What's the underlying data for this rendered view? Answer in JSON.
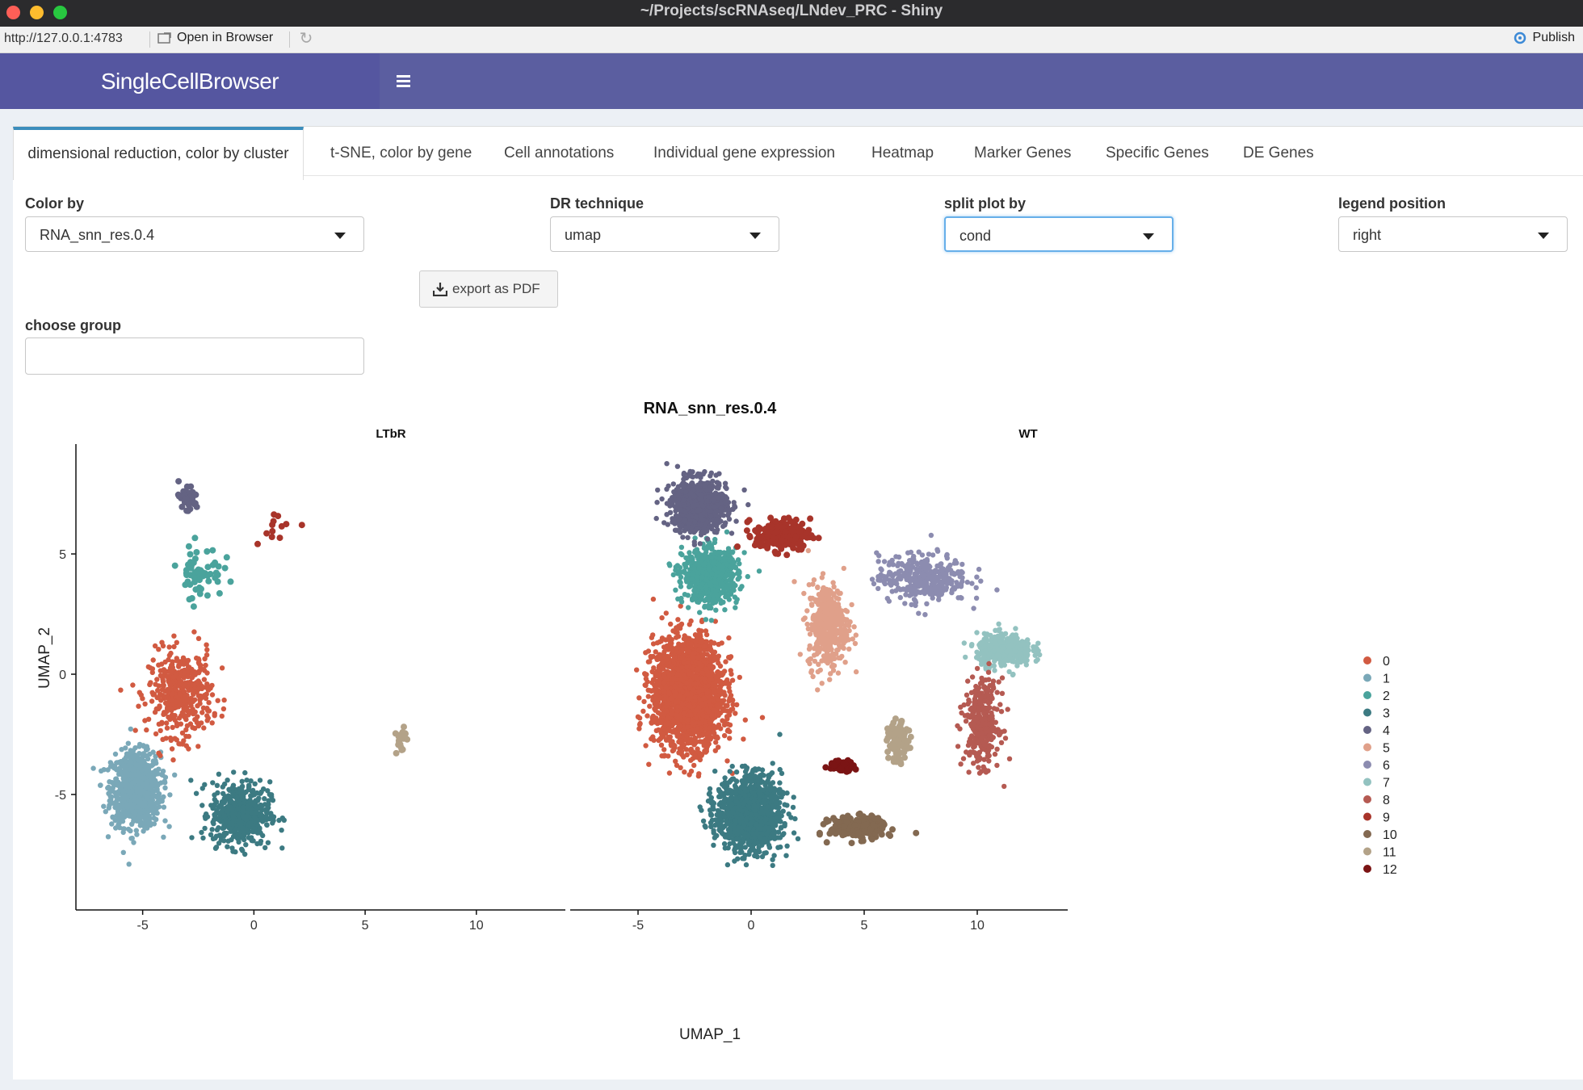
{
  "window": {
    "title": "~/Projects/scRNAseq/LNdev_PRC - Shiny",
    "url": "http://127.0.0.1:4783",
    "open_in_browser": "Open in Browser",
    "publish": "Publish"
  },
  "app": {
    "brand": "SingleCellBrowser",
    "tabs": [
      "dimensional reduction, color by cluster",
      "t-SNE, color by gene",
      "Cell annotations",
      "Individual gene expression",
      "Heatmap",
      "Marker Genes",
      "Specific Genes",
      "DE Genes"
    ],
    "active_tab": 0
  },
  "controls": {
    "color_by": {
      "label": "Color by",
      "value": "RNA_snn_res.0.4"
    },
    "dr_technique": {
      "label": "DR technique",
      "value": "umap"
    },
    "split_plot_by": {
      "label": "split plot by",
      "value": "cond"
    },
    "legend_position": {
      "label": "legend position",
      "value": "right"
    },
    "export_button": "export as PDF",
    "choose_group": {
      "label": "choose group",
      "value": ""
    }
  },
  "colors": {
    "accent": "#3c8dbc",
    "navbar": "#5b5ea0",
    "cluster_palette": [
      "#d15a41",
      "#7aa8b8",
      "#4aa39c",
      "#3c7a82",
      "#646383",
      "#e0a08a",
      "#8c8cb0",
      "#93c2c0",
      "#b55a52",
      "#a8342a",
      "#836951",
      "#b3a288",
      "#7b1414"
    ]
  },
  "chart_data": {
    "type": "scatter",
    "title": "RNA_snn_res.0.4",
    "xlabel": "UMAP_1",
    "ylabel": "UMAP_2",
    "panels": [
      "LTbR",
      "WT"
    ],
    "xlim": [
      -8,
      14
    ],
    "ylim": [
      -9.8,
      9.5
    ],
    "x_ticks": [
      -5,
      0,
      5,
      10
    ],
    "y_ticks": [
      5,
      0,
      -5
    ],
    "legend": {
      "position": "right",
      "entries": [
        "0",
        "1",
        "2",
        "3",
        "4",
        "5",
        "6",
        "7",
        "8",
        "9",
        "10",
        "11",
        "12"
      ]
    },
    "cluster_regions": [
      {
        "panel": "LTbR",
        "cluster": "1",
        "center": [
          -5.3,
          -4.8
        ],
        "spread": [
          1.0,
          1.4
        ],
        "n": 900
      },
      {
        "panel": "LTbR",
        "cluster": "0",
        "center": [
          -3.3,
          -0.8
        ],
        "spread": [
          1.3,
          1.6
        ],
        "n": 420
      },
      {
        "panel": "LTbR",
        "cluster": "3",
        "center": [
          -0.6,
          -5.8
        ],
        "spread": [
          1.2,
          1.2
        ],
        "n": 520
      },
      {
        "panel": "LTbR",
        "cluster": "2",
        "center": [
          -2.4,
          4.3
        ],
        "spread": [
          0.9,
          1.0
        ],
        "n": 60
      },
      {
        "panel": "LTbR",
        "cluster": "4",
        "center": [
          -3.0,
          7.3
        ],
        "spread": [
          0.5,
          0.6
        ],
        "n": 35
      },
      {
        "panel": "LTbR",
        "cluster": "9",
        "center": [
          1.0,
          6.2
        ],
        "spread": [
          1.0,
          0.6
        ],
        "n": 12
      },
      {
        "panel": "LTbR",
        "cluster": "11",
        "center": [
          6.6,
          -2.7
        ],
        "spread": [
          0.2,
          0.6
        ],
        "n": 25
      },
      {
        "panel": "WT",
        "cluster": "0",
        "center": [
          -2.8,
          -0.8
        ],
        "spread": [
          1.4,
          2.0
        ],
        "n": 2200
      },
      {
        "panel": "WT",
        "cluster": "2",
        "center": [
          -1.8,
          4.1
        ],
        "spread": [
          1.1,
          1.0
        ],
        "n": 700
      },
      {
        "panel": "WT",
        "cluster": "4",
        "center": [
          -2.3,
          7.0
        ],
        "spread": [
          1.1,
          1.0
        ],
        "n": 800
      },
      {
        "panel": "WT",
        "cluster": "3",
        "center": [
          -0.1,
          -5.8
        ],
        "spread": [
          1.3,
          1.4
        ],
        "n": 1100
      },
      {
        "panel": "WT",
        "cluster": "9",
        "center": [
          1.4,
          5.8
        ],
        "spread": [
          1.1,
          0.6
        ],
        "n": 220
      },
      {
        "panel": "WT",
        "cluster": "5",
        "center": [
          3.4,
          2.0
        ],
        "spread": [
          0.8,
          1.6
        ],
        "n": 400
      },
      {
        "panel": "WT",
        "cluster": "6",
        "center": [
          7.6,
          4.0
        ],
        "spread": [
          1.8,
          0.9
        ],
        "n": 350
      },
      {
        "panel": "WT",
        "cluster": "7",
        "center": [
          11.2,
          1.0
        ],
        "spread": [
          1.1,
          0.6
        ],
        "n": 420
      },
      {
        "panel": "WT",
        "cluster": "8",
        "center": [
          10.2,
          -2.0
        ],
        "spread": [
          0.7,
          1.6
        ],
        "n": 330
      },
      {
        "panel": "WT",
        "cluster": "10",
        "center": [
          4.7,
          -6.4
        ],
        "spread": [
          1.1,
          0.4
        ],
        "n": 240
      },
      {
        "panel": "WT",
        "cluster": "11",
        "center": [
          6.5,
          -2.8
        ],
        "spread": [
          0.4,
          0.7
        ],
        "n": 110
      },
      {
        "panel": "WT",
        "cluster": "12",
        "center": [
          4.0,
          -3.8
        ],
        "spread": [
          0.5,
          0.2
        ],
        "n": 80
      }
    ]
  }
}
